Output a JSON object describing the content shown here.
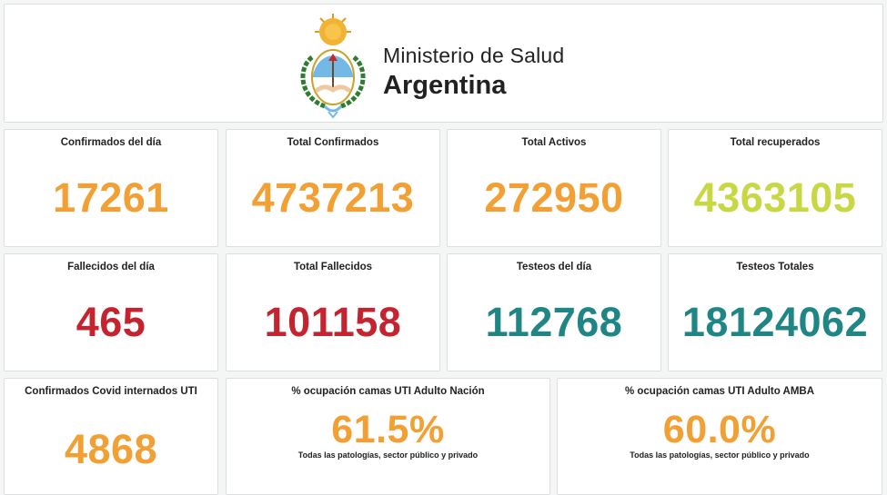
{
  "header": {
    "org_line1": "Ministerio de Salud",
    "org_line2": "Argentina",
    "logo_icon": "coat-of-arms-icon"
  },
  "colors": {
    "orange": "#f29f33",
    "lime": "#c8d744",
    "red": "#c4242f",
    "teal": "#1f8585"
  },
  "stats": {
    "confirmados_dia": {
      "title": "Confirmados del día",
      "value": "17261"
    },
    "total_confirmados": {
      "title": "Total Confirmados",
      "value": "4737213"
    },
    "total_activos": {
      "title": "Total Activos",
      "value": "272950"
    },
    "total_recuperados": {
      "title": "Total recuperados",
      "value": "4363105"
    },
    "fallecidos_dia": {
      "title": "Fallecidos del día",
      "value": "465"
    },
    "total_fallecidos": {
      "title": "Total Fallecidos",
      "value": "101158"
    },
    "testeos_dia": {
      "title": "Testeos del día",
      "value": "112768"
    },
    "testeos_totales": {
      "title": "Testeos Totales",
      "value": "18124062"
    },
    "internados_uti": {
      "title": "Confirmados Covid internados UTI",
      "value": "4868"
    },
    "ocupacion_nacion": {
      "title": "% ocupación camas UTI Adulto Nación",
      "value": "61.5%",
      "note": "Todas las patologías, sector público y privado"
    },
    "ocupacion_amba": {
      "title": "% ocupación camas UTI Adulto AMBA",
      "value": "60.0%",
      "note": "Todas las patologías, sector público y privado"
    }
  }
}
